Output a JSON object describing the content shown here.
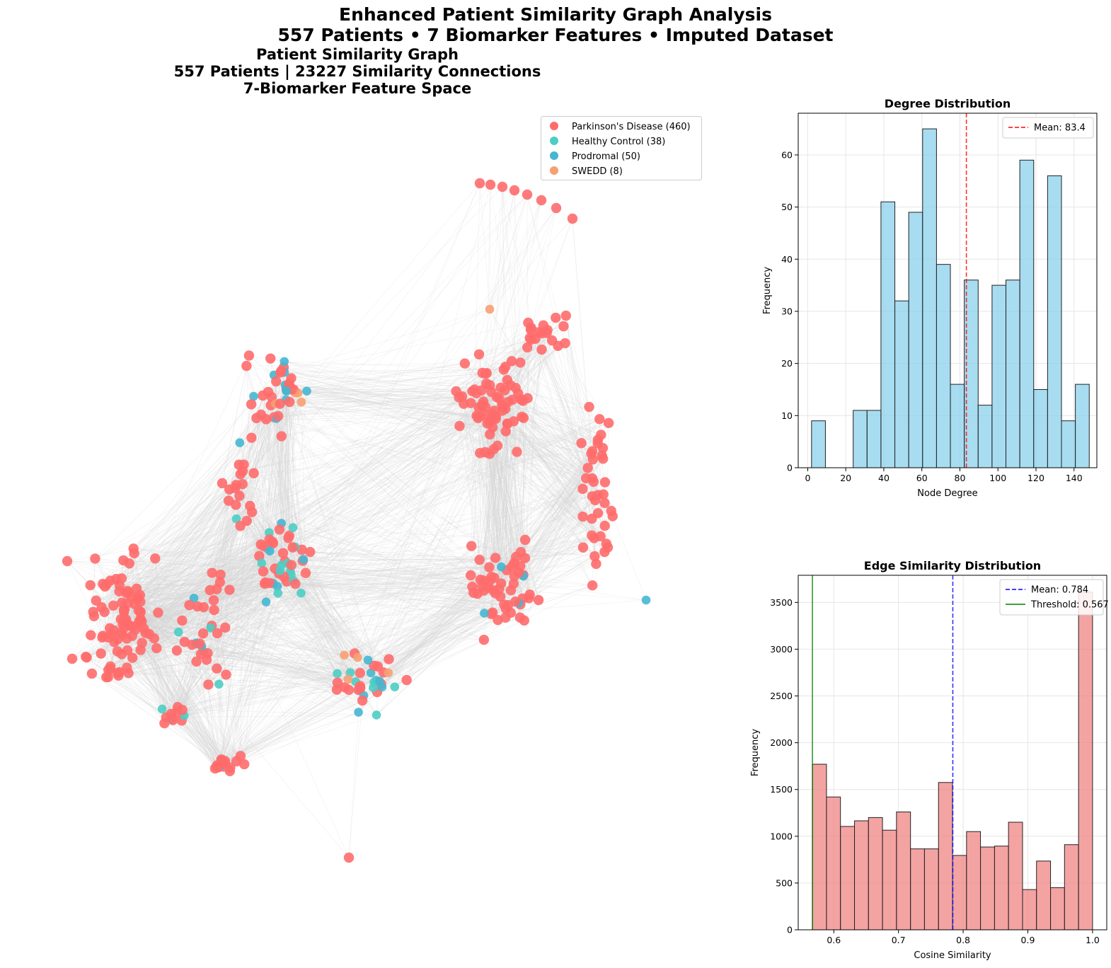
{
  "suptitle": {
    "line1": "Enhanced Patient Similarity Graph Analysis",
    "line2": "557 Patients • 7 Biomarker Features • Imputed Dataset"
  },
  "graph": {
    "title_lines": [
      "Patient Similarity Graph",
      "557 Patients | 23227 Similarity Connections",
      "7-Biomarker Feature Space"
    ],
    "legend": [
      {
        "label": "Parkinson's Disease (460)",
        "color": "#ff6b6b"
      },
      {
        "label": "Healthy Control (38)",
        "color": "#4ecdc4"
      },
      {
        "label": "Prodromal (50)",
        "color": "#45b7d1"
      },
      {
        "label": "SWEDD (8)",
        "color": "#f7a072"
      }
    ],
    "edge_color": "#d3d3d3"
  },
  "chart_data": [
    {
      "type": "bar",
      "title": "Degree Distribution",
      "xlabel": "Node Degree",
      "ylabel": "Frequency",
      "xlim": [
        -5,
        152
      ],
      "ylim": [
        0,
        68
      ],
      "xticks": [
        0,
        20,
        40,
        60,
        80,
        100,
        120,
        140
      ],
      "yticks": [
        0,
        10,
        20,
        30,
        40,
        50,
        60
      ],
      "grid": true,
      "bar_color": "#87ceeb",
      "bin_edges": [
        2,
        9.3,
        16.6,
        23.9,
        31.2,
        38.5,
        45.8,
        53.1,
        60.4,
        67.7,
        75,
        82.3,
        89.6,
        96.9,
        104.2,
        111.5,
        118.8,
        126.1,
        133.4,
        140.7,
        148
      ],
      "values": [
        9,
        0,
        0,
        11,
        11,
        51,
        32,
        49,
        65,
        39,
        16,
        36,
        12,
        35,
        36,
        59,
        15,
        56,
        9,
        16
      ],
      "reference_lines": [
        {
          "label": "Mean: 83.4",
          "x": 83.4,
          "color": "#ff0000",
          "style": "dashed"
        }
      ],
      "legend_position": "upper right"
    },
    {
      "type": "bar",
      "title": "Edge Similarity Distribution",
      "xlabel": "Cosine Similarity",
      "ylabel": "Frequency",
      "xlim": [
        0.545,
        1.022
      ],
      "ylim": [
        0,
        3790
      ],
      "xticks": [
        0.6,
        0.7,
        0.8,
        0.9,
        1.0
      ],
      "xtick_labels": [
        "0.6",
        "0.7",
        "0.8",
        "0.9",
        "1.0"
      ],
      "yticks": [
        0,
        500,
        1000,
        1500,
        2000,
        2500,
        3000,
        3500
      ],
      "grid": true,
      "bar_color": "#f08080",
      "bin_edges": [
        0.567,
        0.5887,
        0.6103,
        0.632,
        0.6536,
        0.6753,
        0.6969,
        0.7186,
        0.7402,
        0.7619,
        0.7835,
        0.8052,
        0.8268,
        0.8485,
        0.8701,
        0.8918,
        0.9134,
        0.9351,
        0.9567,
        0.9784,
        1.0
      ],
      "values": [
        1770,
        1420,
        1105,
        1165,
        1200,
        1065,
        1260,
        865,
        865,
        1575,
        795,
        1050,
        885,
        895,
        1150,
        430,
        735,
        450,
        910,
        3610
      ],
      "reference_lines": [
        {
          "label": "Mean: 0.784",
          "x": 0.784,
          "color": "#0000ff",
          "style": "dashed"
        },
        {
          "label": "Threshold: 0.567",
          "x": 0.567,
          "color": "#008000",
          "style": "solid"
        }
      ],
      "legend_position": "upper right"
    }
  ]
}
